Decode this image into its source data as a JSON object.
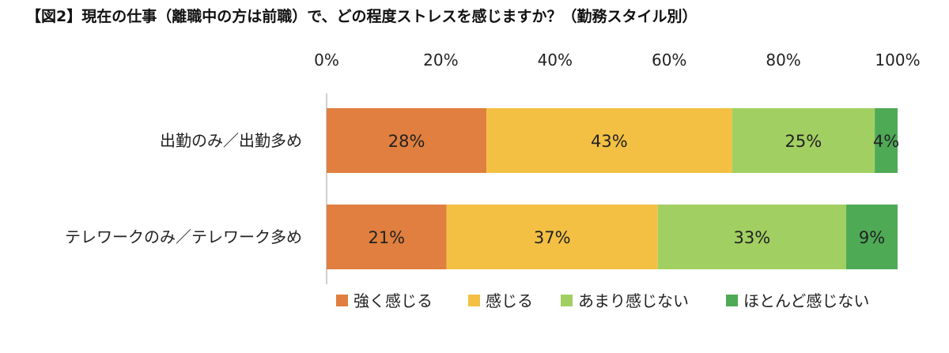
{
  "chart_data": {
    "type": "bar",
    "orientation": "horizontal",
    "stacked": true,
    "title": "【図2】現在の仕事（離職中の方は前職）で、どの程度ストレスを感じますか？（勤務スタイル別）",
    "categories": [
      "出勤のみ／出勤多め",
      "テレワークのみ／テレワーク多め"
    ],
    "x_ticks": [
      "0%",
      "20%",
      "40%",
      "60%",
      "80%",
      "100%"
    ],
    "xlim": [
      0,
      100
    ],
    "grid": false,
    "legend_position": "bottom",
    "series": [
      {
        "name": "強く感じる",
        "color": "#E07F3F",
        "values": [
          28,
          21
        ],
        "labels": [
          "28%",
          "21%"
        ]
      },
      {
        "name": "感じる",
        "color": "#F3C043",
        "values": [
          43,
          37
        ],
        "labels": [
          "43%",
          "37%"
        ]
      },
      {
        "name": "あまり感じない",
        "color": "#A2CF62",
        "values": [
          25,
          33
        ],
        "labels": [
          "25%",
          "33%"
        ]
      },
      {
        "name": "ほとんど感じない",
        "color": "#4FAA56",
        "values": [
          4,
          9
        ],
        "labels": [
          "4%",
          "9%"
        ]
      }
    ]
  }
}
